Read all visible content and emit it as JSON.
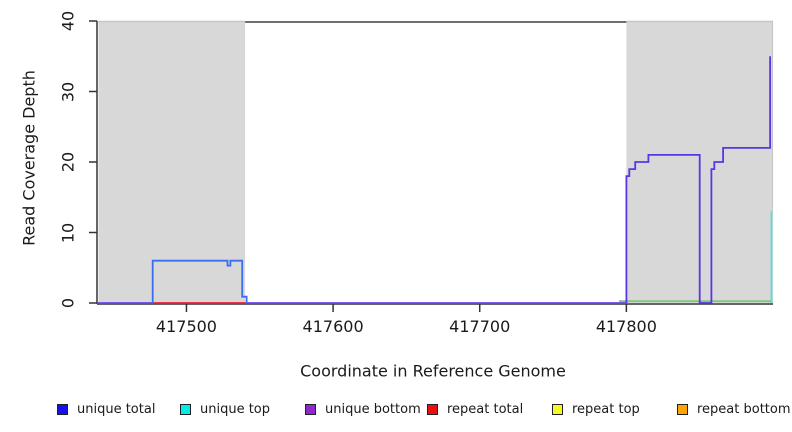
{
  "chart_data": {
    "type": "line",
    "title": "",
    "xlabel": "Coordinate in Reference Genome",
    "ylabel": "Read Coverage Depth",
    "xlim": [
      417439,
      417900
    ],
    "ylim": [
      0,
      40
    ],
    "xticks": [
      417500,
      417600,
      417700,
      417800
    ],
    "yticks": [
      0,
      10,
      20,
      30,
      40
    ],
    "grid": false,
    "legend_position": "bottom",
    "axis_color": "#333333",
    "shaded_regions": [
      {
        "name": "shaded-region-left",
        "x0": 417440,
        "x1": 417540,
        "color": "#d8d8d8",
        "edge_color": "#c6c6c6"
      },
      {
        "name": "shaded-region-right",
        "x0": 417800,
        "x1": 417900,
        "color": "#d8d8d8",
        "edge_color": "#c6c6c6"
      }
    ],
    "top_rule": {
      "x0": 417540,
      "x1": 417800,
      "y": 40,
      "color": "#6e6e6e"
    },
    "series": [
      {
        "name": "baseline-right-green",
        "color": "#7bc97b",
        "points": [
          [
            417795,
            0.25
          ],
          [
            417899,
            0.25
          ]
        ]
      },
      {
        "name": "repeat-total",
        "color": "#ee2233",
        "points": [
          [
            417477,
            0
          ],
          [
            417540.5,
            0
          ]
        ]
      },
      {
        "name": "unique-baseline-left",
        "color": "#6b46f2",
        "points": [
          [
            417439,
            0
          ],
          [
            417477,
            0
          ]
        ]
      },
      {
        "name": "unique-baseline-middle",
        "color": "#6b46f2",
        "points": [
          [
            417541,
            0
          ],
          [
            417800,
            0
          ]
        ]
      },
      {
        "name": "unique-total-left-block",
        "color": "#3a6df2",
        "points": [
          [
            417477,
            0
          ],
          [
            417477,
            6
          ],
          [
            417528,
            6
          ],
          [
            417528,
            5.3
          ],
          [
            417530,
            5.3
          ],
          [
            417530,
            6
          ],
          [
            417538,
            6
          ],
          [
            417538,
            0.9
          ],
          [
            417541,
            0.9
          ],
          [
            417541,
            0
          ]
        ]
      },
      {
        "name": "unique-right-steps",
        "color": "#5a35e6",
        "points": [
          [
            417800,
            0
          ],
          [
            417800,
            18
          ],
          [
            417802,
            18
          ],
          [
            417802,
            19
          ],
          [
            417806,
            19
          ],
          [
            417806,
            20
          ],
          [
            417815,
            20
          ],
          [
            417815,
            21
          ],
          [
            417850,
            21
          ],
          [
            417850,
            0
          ],
          [
            417858,
            0
          ],
          [
            417858,
            19
          ],
          [
            417860,
            19
          ],
          [
            417860,
            20
          ],
          [
            417866,
            20
          ],
          [
            417866,
            22
          ],
          [
            417898,
            22
          ],
          [
            417898,
            35
          ]
        ]
      },
      {
        "name": "unique-top-right-edge",
        "color": "#5fdbdb",
        "points": [
          [
            417899,
            0
          ],
          [
            417899,
            13
          ]
        ]
      }
    ]
  },
  "legend": {
    "items": [
      {
        "label": "unique total",
        "color": "#1414e6"
      },
      {
        "label": "unique top",
        "color": "#00eded"
      },
      {
        "label": "unique bottom",
        "color": "#9327cf"
      },
      {
        "label": "repeat total",
        "color": "#e81010"
      },
      {
        "label": "repeat top",
        "color": "#f7f72a"
      },
      {
        "label": "repeat bottom",
        "color": "#ffa500"
      }
    ]
  }
}
